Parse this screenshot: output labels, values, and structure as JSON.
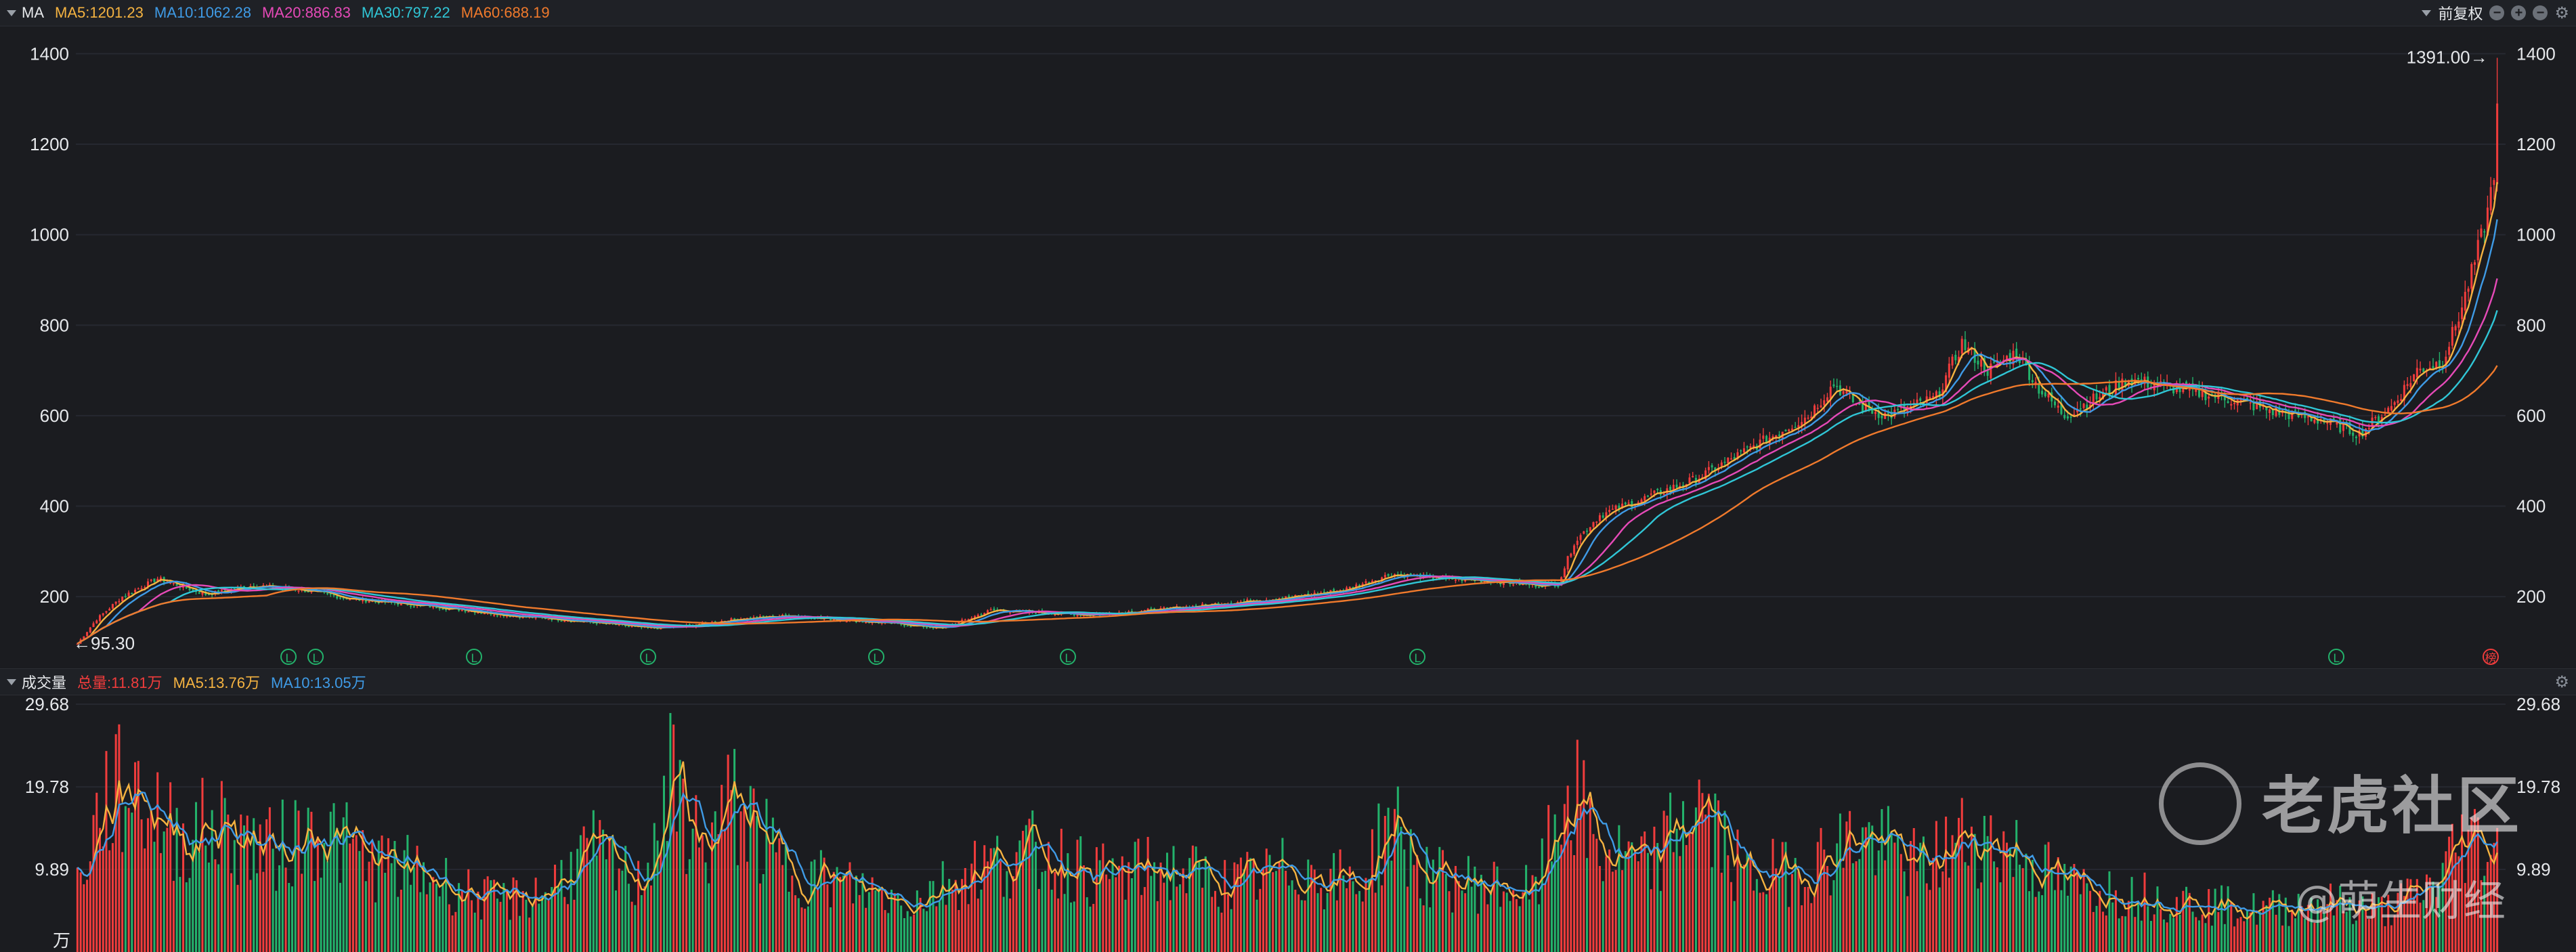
{
  "price_header": {
    "indicator": "MA",
    "ma_labels": [
      {
        "text": "MA5:1201.23",
        "color": "#f5b341"
      },
      {
        "text": "MA10:1062.28",
        "color": "#3f9be6"
      },
      {
        "text": "MA20:886.83",
        "color": "#e64ab8"
      },
      {
        "text": "MA30:797.22",
        "color": "#30c6d6"
      },
      {
        "text": "MA60:688.19",
        "color": "#f07a2c"
      }
    ],
    "adjust_label": "前复权"
  },
  "volume_header": {
    "title": "成交量",
    "labels": [
      {
        "text": "总量:11.81万",
        "color": "#f03c3c"
      },
      {
        "text": "MA5:13.76万",
        "color": "#f5b341"
      },
      {
        "text": "MA10:13.05万",
        "color": "#3f9be6"
      }
    ]
  },
  "colors": {
    "up": "#f03c3c",
    "down": "#23b26b",
    "grid": "#262830"
  },
  "chart_data": [
    {
      "type": "candlestick",
      "ylim": [
        70,
        1420
      ],
      "y_ticks": [
        "1400",
        "1200",
        "1000",
        "800",
        "600",
        "400",
        "200"
      ],
      "y_tick_values": [
        1400,
        1200,
        1000,
        800,
        600,
        400,
        200
      ],
      "annotations": {
        "high": "1391.00→",
        "low": "←95.30"
      },
      "markers": [
        "L",
        "L",
        "L",
        "L",
        "L",
        "L",
        "L",
        "L",
        "榜"
      ],
      "close_keypoints": [
        [
          0,
          96
        ],
        [
          6,
          150
        ],
        [
          14,
          200
        ],
        [
          25,
          240
        ],
        [
          40,
          205
        ],
        [
          55,
          225
        ],
        [
          70,
          215
        ],
        [
          85,
          195
        ],
        [
          100,
          185
        ],
        [
          115,
          175
        ],
        [
          135,
          158
        ],
        [
          150,
          150
        ],
        [
          165,
          140
        ],
        [
          178,
          130
        ],
        [
          190,
          135
        ],
        [
          205,
          150
        ],
        [
          222,
          158
        ],
        [
          240,
          148
        ],
        [
          255,
          140
        ],
        [
          270,
          130
        ],
        [
          285,
          170
        ],
        [
          300,
          165
        ],
        [
          315,
          160
        ],
        [
          335,
          170
        ],
        [
          350,
          180
        ],
        [
          365,
          190
        ],
        [
          380,
          200
        ],
        [
          395,
          215
        ],
        [
          410,
          250
        ],
        [
          425,
          240
        ],
        [
          440,
          235
        ],
        [
          455,
          225
        ],
        [
          462,
          228
        ],
        [
          467,
          320
        ],
        [
          475,
          380
        ],
        [
          490,
          420
        ],
        [
          505,
          460
        ],
        [
          520,
          520
        ],
        [
          540,
          600
        ],
        [
          548,
          670
        ],
        [
          556,
          620
        ],
        [
          565,
          600
        ],
        [
          580,
          640
        ],
        [
          588,
          760
        ],
        [
          596,
          700
        ],
        [
          605,
          740
        ],
        [
          612,
          660
        ],
        [
          620,
          600
        ],
        [
          630,
          640
        ],
        [
          640,
          680
        ],
        [
          655,
          660
        ],
        [
          670,
          640
        ],
        [
          685,
          610
        ],
        [
          700,
          590
        ],
        [
          712,
          560
        ],
        [
          722,
          620
        ],
        [
          730,
          700
        ],
        [
          738,
          720
        ],
        [
          744,
          840
        ],
        [
          748,
          940
        ],
        [
          752,
          1050
        ],
        [
          755,
          1190
        ]
      ],
      "moving_averages": [
        {
          "name": "MA5",
          "period": 5,
          "color": "#f5b341"
        },
        {
          "name": "MA10",
          "period": 10,
          "color": "#3f9be6"
        },
        {
          "name": "MA20",
          "period": 20,
          "color": "#e64ab8"
        },
        {
          "name": "MA30",
          "period": 30,
          "color": "#30c6d6"
        },
        {
          "name": "MA60",
          "period": 60,
          "color": "#f07a2c"
        }
      ]
    },
    {
      "type": "bar",
      "ylim": [
        0,
        29.68
      ],
      "y_ticks": [
        "29.68",
        "19.78",
        "9.89"
      ],
      "y_tick_values": [
        29.68,
        19.78,
        9.89
      ],
      "unit": "万",
      "volume_keypoints": [
        [
          0,
          8
        ],
        [
          8,
          18
        ],
        [
          18,
          20
        ],
        [
          30,
          14
        ],
        [
          45,
          15
        ],
        [
          60,
          12
        ],
        [
          75,
          15
        ],
        [
          90,
          11
        ],
        [
          110,
          9
        ],
        [
          130,
          6
        ],
        [
          145,
          7
        ],
        [
          160,
          12
        ],
        [
          175,
          8
        ],
        [
          185,
          20
        ],
        [
          195,
          12
        ],
        [
          205,
          18
        ],
        [
          220,
          10
        ],
        [
          240,
          8
        ],
        [
          260,
          6
        ],
        [
          280,
          10
        ],
        [
          300,
          12
        ],
        [
          320,
          9
        ],
        [
          340,
          10
        ],
        [
          360,
          8
        ],
        [
          380,
          10
        ],
        [
          400,
          8
        ],
        [
          410,
          16
        ],
        [
          420,
          9
        ],
        [
          440,
          8
        ],
        [
          455,
          7
        ],
        [
          465,
          20
        ],
        [
          475,
          12
        ],
        [
          490,
          10
        ],
        [
          505,
          18
        ],
        [
          520,
          9
        ],
        [
          540,
          10
        ],
        [
          556,
          14
        ],
        [
          575,
          10
        ],
        [
          590,
          14
        ],
        [
          605,
          12
        ],
        [
          620,
          8
        ],
        [
          640,
          7
        ],
        [
          660,
          6
        ],
        [
          680,
          5
        ],
        [
          700,
          6
        ],
        [
          720,
          5
        ],
        [
          735,
          8
        ],
        [
          745,
          14
        ],
        [
          755,
          12
        ]
      ],
      "moving_averages": [
        {
          "name": "MA5",
          "period": 5,
          "color": "#f5b341"
        },
        {
          "name": "MA10",
          "period": 10,
          "color": "#3f9be6"
        }
      ]
    }
  ],
  "watermark": {
    "brand": "老虎社区",
    "author": "@萌生财经"
  }
}
